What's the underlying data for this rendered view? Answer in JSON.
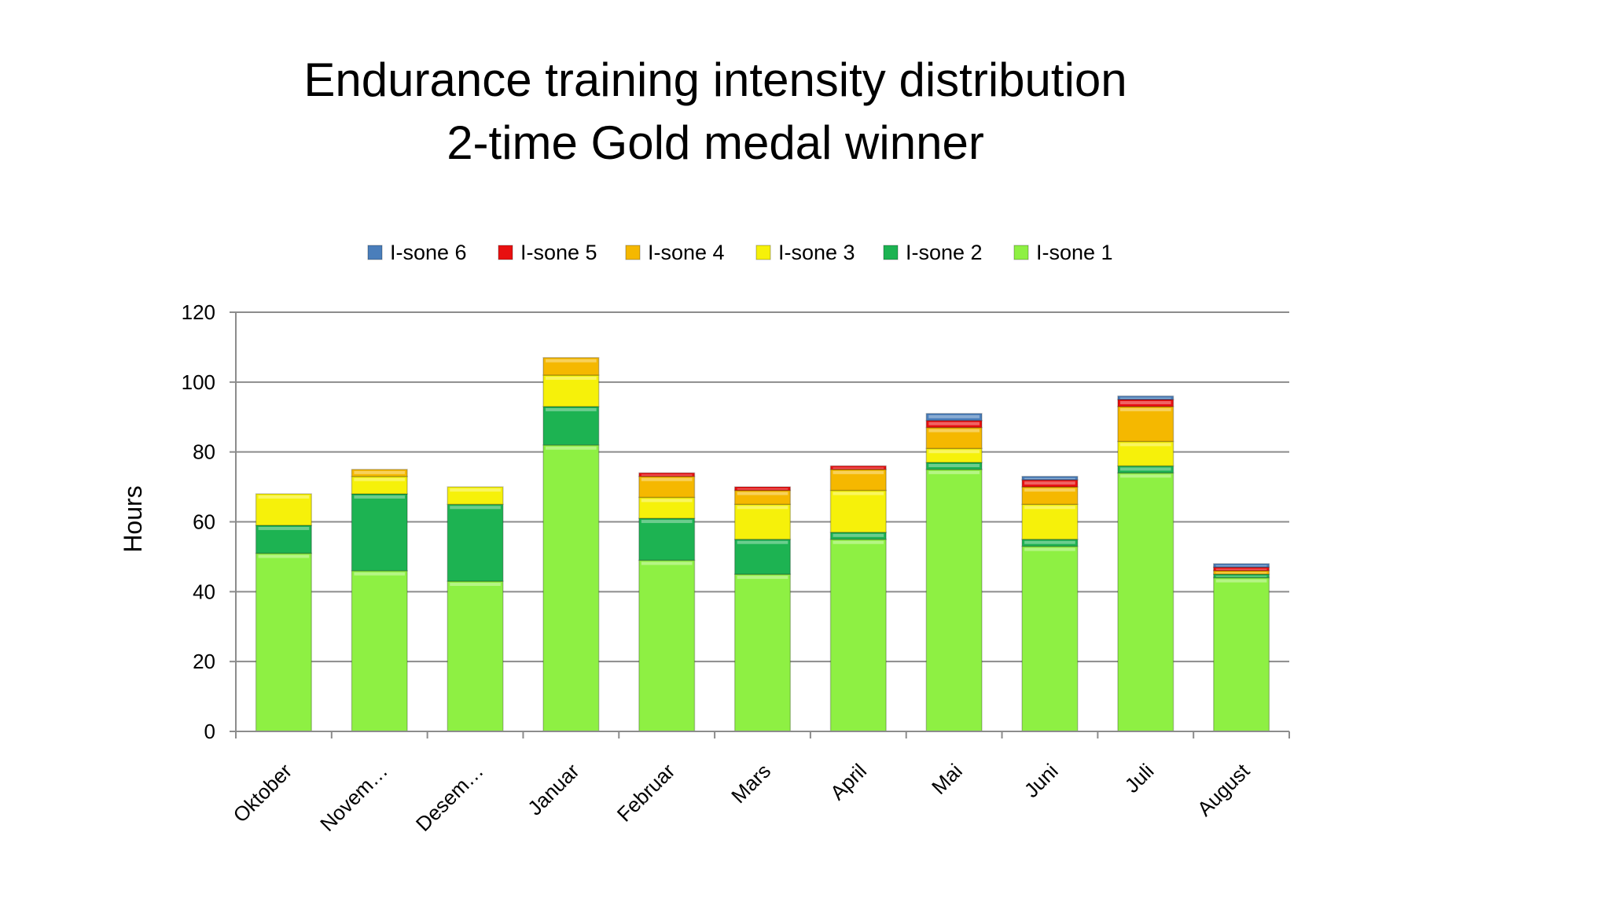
{
  "chart_data": {
    "type": "bar",
    "stacked": true,
    "title": "Endurance training intensity distribution",
    "subtitle": "2-time Gold medal winner",
    "xlabel": "",
    "ylabel": "Hours",
    "ylim": [
      0,
      120
    ],
    "yticks": [
      0,
      20,
      40,
      60,
      80,
      100,
      120
    ],
    "grid": true,
    "legend_position": "top",
    "categories": [
      "Oktober",
      "Novem…",
      "Desem…",
      "Januar",
      "Februar",
      "Mars",
      "April",
      "Mai",
      "Juni",
      "Juli",
      "August"
    ],
    "series": [
      {
        "name": "I-sone 1",
        "color": "#8ef043",
        "values": [
          51,
          46,
          43,
          82,
          49,
          45,
          55,
          75,
          53,
          74,
          44
        ]
      },
      {
        "name": "I-sone 2",
        "color": "#1db352",
        "values": [
          8,
          22,
          22,
          11,
          12,
          10,
          2,
          2,
          2,
          2,
          1
        ]
      },
      {
        "name": "I-sone 3",
        "color": "#f6f10a",
        "values": [
          9,
          5,
          5,
          9,
          6,
          10,
          12,
          4,
          10,
          7,
          0
        ]
      },
      {
        "name": "I-sone 4",
        "color": "#f5b800",
        "values": [
          0,
          2,
          0,
          5,
          6,
          4,
          6,
          6,
          5,
          10,
          1
        ]
      },
      {
        "name": "I-sone 5",
        "color": "#e81010",
        "values": [
          0,
          0,
          0,
          0,
          1,
          1,
          1,
          2,
          2,
          2,
          1
        ]
      },
      {
        "name": "I-sone 6",
        "color": "#4a7ebb",
        "values": [
          0,
          0,
          0,
          0,
          0,
          0,
          0,
          2,
          1,
          1,
          1
        ]
      }
    ],
    "legend_order": [
      "I-sone 6",
      "I-sone 5",
      "I-sone 4",
      "I-sone 3",
      "I-sone 2",
      "I-sone 1"
    ]
  }
}
